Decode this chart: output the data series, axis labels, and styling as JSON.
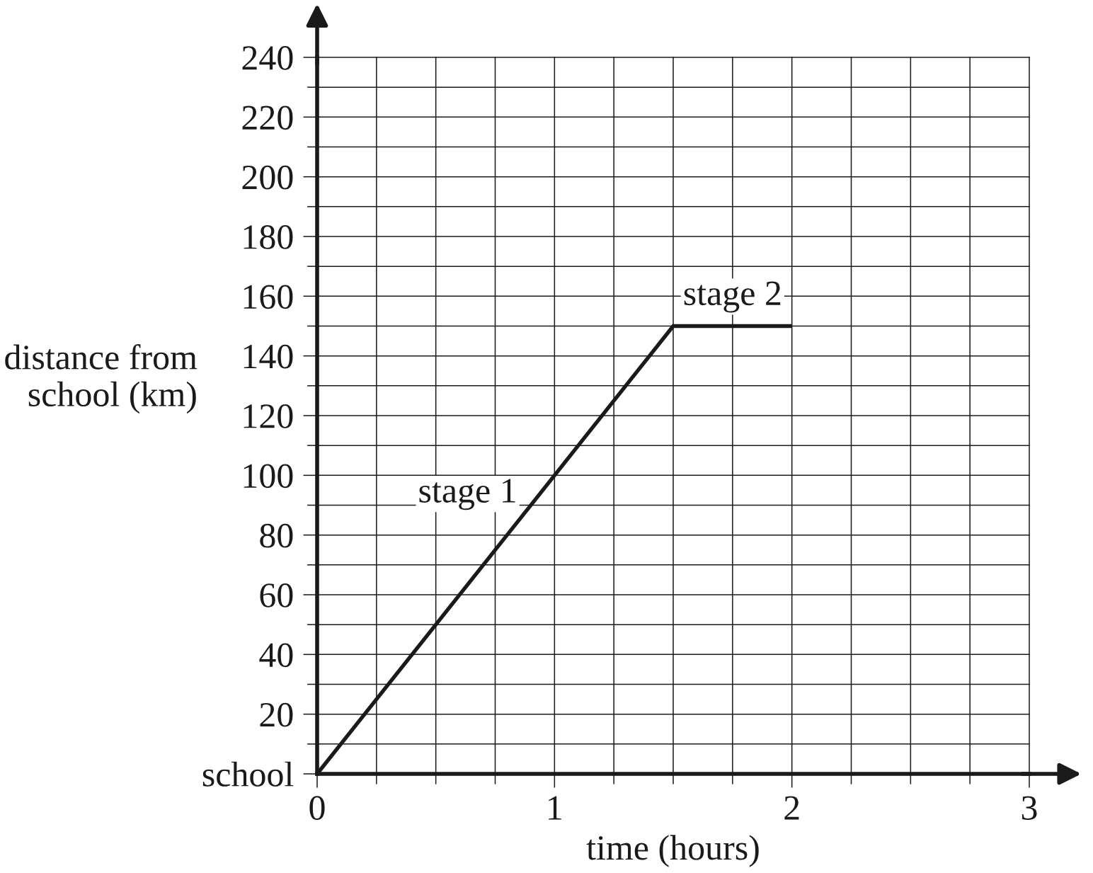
{
  "chart_data": {
    "type": "line",
    "xlabel": "time (hours)",
    "ylabel": "distance from\nschool (km)",
    "x": [
      0,
      1.5,
      2
    ],
    "series": [
      {
        "color": "#1a1a1a",
        "values": [
          0,
          150,
          150
        ]
      }
    ],
    "line_style": "solid",
    "xlim": [
      0,
      3
    ],
    "ylim": [
      0,
      240
    ],
    "xticks": [
      0,
      {
        "value": 0.25,
        "label": null
      },
      {
        "value": 0.5,
        "label": null
      },
      {
        "value": 0.75,
        "label": null
      },
      1,
      {
        "value": 1.25,
        "label": null
      },
      {
        "value": 1.5,
        "label": null
      },
      {
        "value": 1.75,
        "label": null
      },
      2,
      {
        "value": 2.25,
        "label": null
      },
      {
        "value": 2.5,
        "label": null
      },
      {
        "value": 2.75,
        "label": null
      },
      3
    ],
    "yticks": [
      {
        "value": 0,
        "label": "school"
      },
      {
        "value": 10,
        "label": null
      },
      20,
      {
        "value": 30,
        "label": null
      },
      40,
      {
        "value": 50,
        "label": null
      },
      60,
      {
        "value": 70,
        "label": null
      },
      80,
      {
        "value": 90,
        "label": null
      },
      100,
      {
        "value": 110,
        "label": null
      },
      120,
      {
        "value": 130,
        "label": null
      },
      140,
      {
        "value": 150,
        "label": null
      },
      160,
      {
        "value": 170,
        "label": null
      },
      180,
      {
        "value": 190,
        "label": null
      },
      200,
      {
        "value": 210,
        "label": null
      },
      220,
      {
        "value": 230,
        "label": null
      },
      240
    ],
    "grid": true,
    "annotations": [
      "stage 1",
      "stage 2"
    ]
  }
}
